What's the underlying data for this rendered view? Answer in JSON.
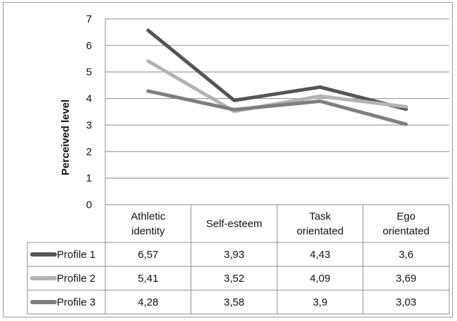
{
  "chart_data": {
    "type": "line",
    "title": "",
    "ylabel": "Perceived level",
    "xlabel": "",
    "ylim": [
      0,
      7
    ],
    "yticks": [
      0,
      1,
      2,
      3,
      4,
      5,
      6,
      7
    ],
    "grid": true,
    "legend": "data-table",
    "categories": [
      [
        "Athletic",
        "identity"
      ],
      [
        "Self-esteem"
      ],
      [
        "Task",
        "orientated"
      ],
      [
        "Ego",
        "orientated"
      ]
    ],
    "series": [
      {
        "name": "Profile 1",
        "color": "#555555",
        "values": [
          6.57,
          3.93,
          4.43,
          3.6
        ],
        "labels": [
          "6,57",
          "3,93",
          "4,43",
          "3,6"
        ]
      },
      {
        "name": "Profile 2",
        "color": "#b3b3b3",
        "values": [
          5.41,
          3.52,
          4.09,
          3.69
        ],
        "labels": [
          "5,41",
          "3,52",
          "4,09",
          "3,69"
        ]
      },
      {
        "name": "Profile 3",
        "color": "#7e7e7e",
        "values": [
          4.28,
          3.58,
          3.9,
          3.03
        ],
        "labels": [
          "4,28",
          "3,58",
          "3,9",
          "3,03"
        ]
      }
    ]
  }
}
